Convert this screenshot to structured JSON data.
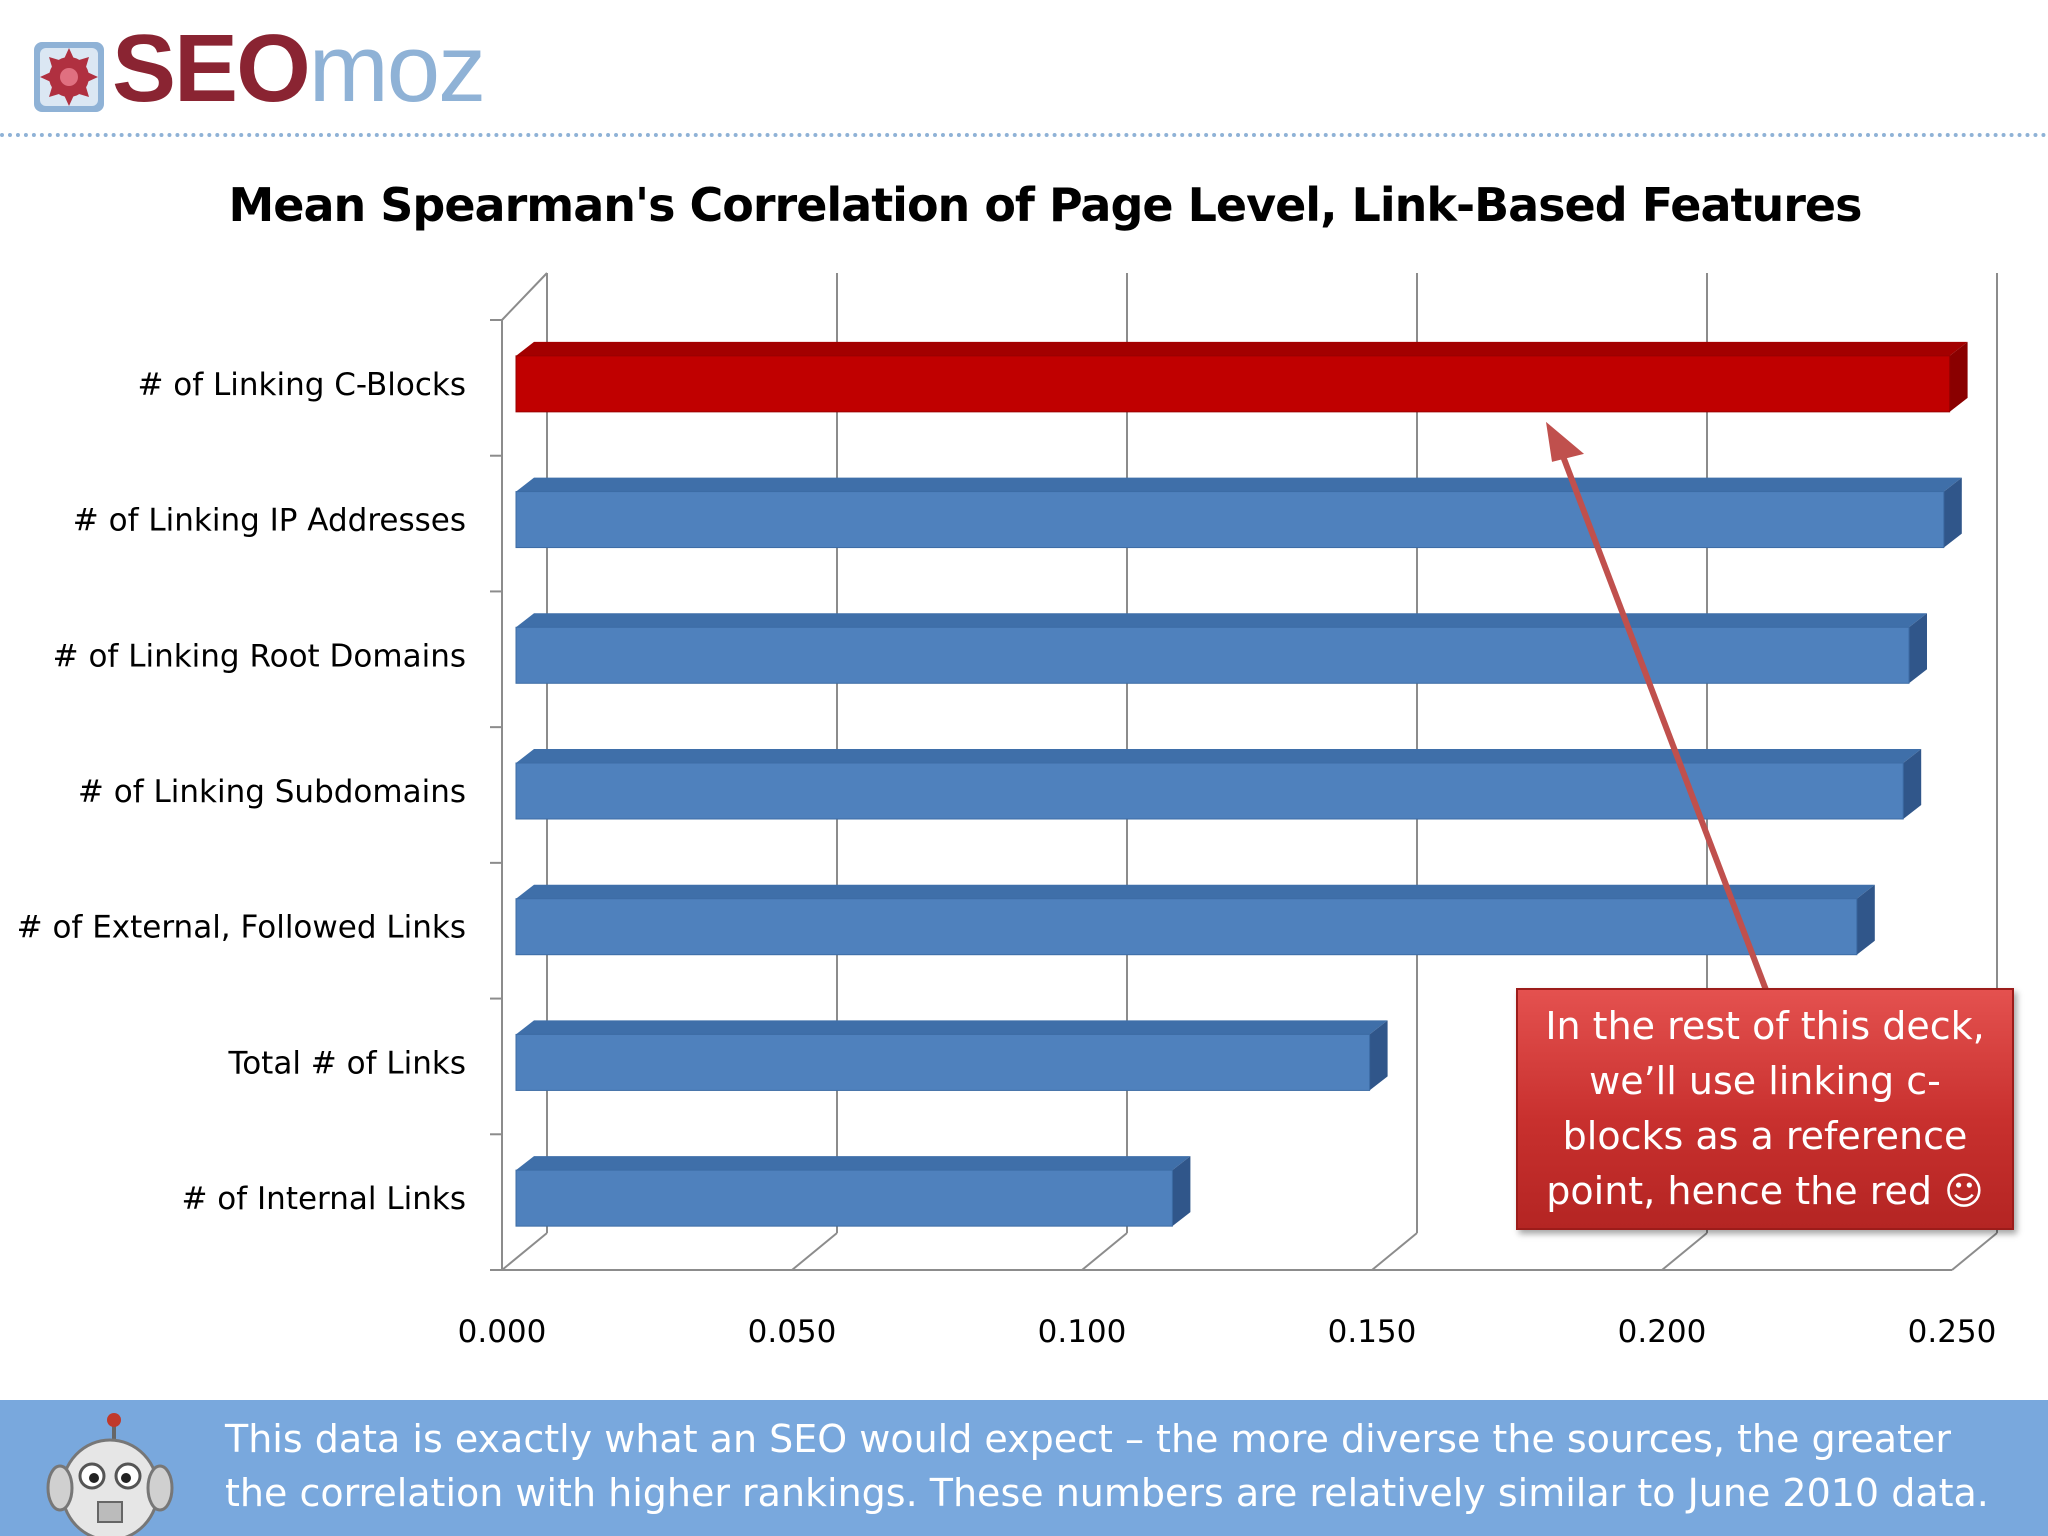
{
  "header": {
    "logo_seo": "SEO",
    "logo_moz": "moz",
    "colors": {
      "seo": "#8a2432",
      "moz": "#8fb2d6"
    }
  },
  "chart_data": {
    "type": "bar",
    "orientation": "horizontal",
    "title": "Mean Spearman's Correlation of Page Level, Link-Based Features",
    "categories": [
      "# of Linking C-Blocks",
      "# of Linking IP Addresses",
      "# of Linking Root Domains",
      "# of Linking Subdomains",
      "# of External, Followed Links",
      "Total # of Links",
      "# of Internal Links"
    ],
    "values": [
      0.252,
      0.251,
      0.245,
      0.244,
      0.236,
      0.152,
      0.118
    ],
    "xlim": [
      0,
      0.25
    ],
    "ticks": [
      "0.000",
      "0.050",
      "0.100",
      "0.150",
      "0.200",
      "0.250"
    ],
    "tick_values": [
      0,
      0.05,
      0.1,
      0.15,
      0.2,
      0.25
    ],
    "grid": true,
    "highlight_index": 0,
    "colors": {
      "bar": "#4f81bd",
      "highlight": "#c00000"
    }
  },
  "callout": {
    "text": "In the rest of this deck, we’ll use linking c-blocks as a reference point, hence the red ☺"
  },
  "footer": {
    "text": "This data is exactly what an SEO would expect – the more diverse the sources, the greater the correlation with higher rankings. These numbers are relatively similar to June 2010 data."
  }
}
